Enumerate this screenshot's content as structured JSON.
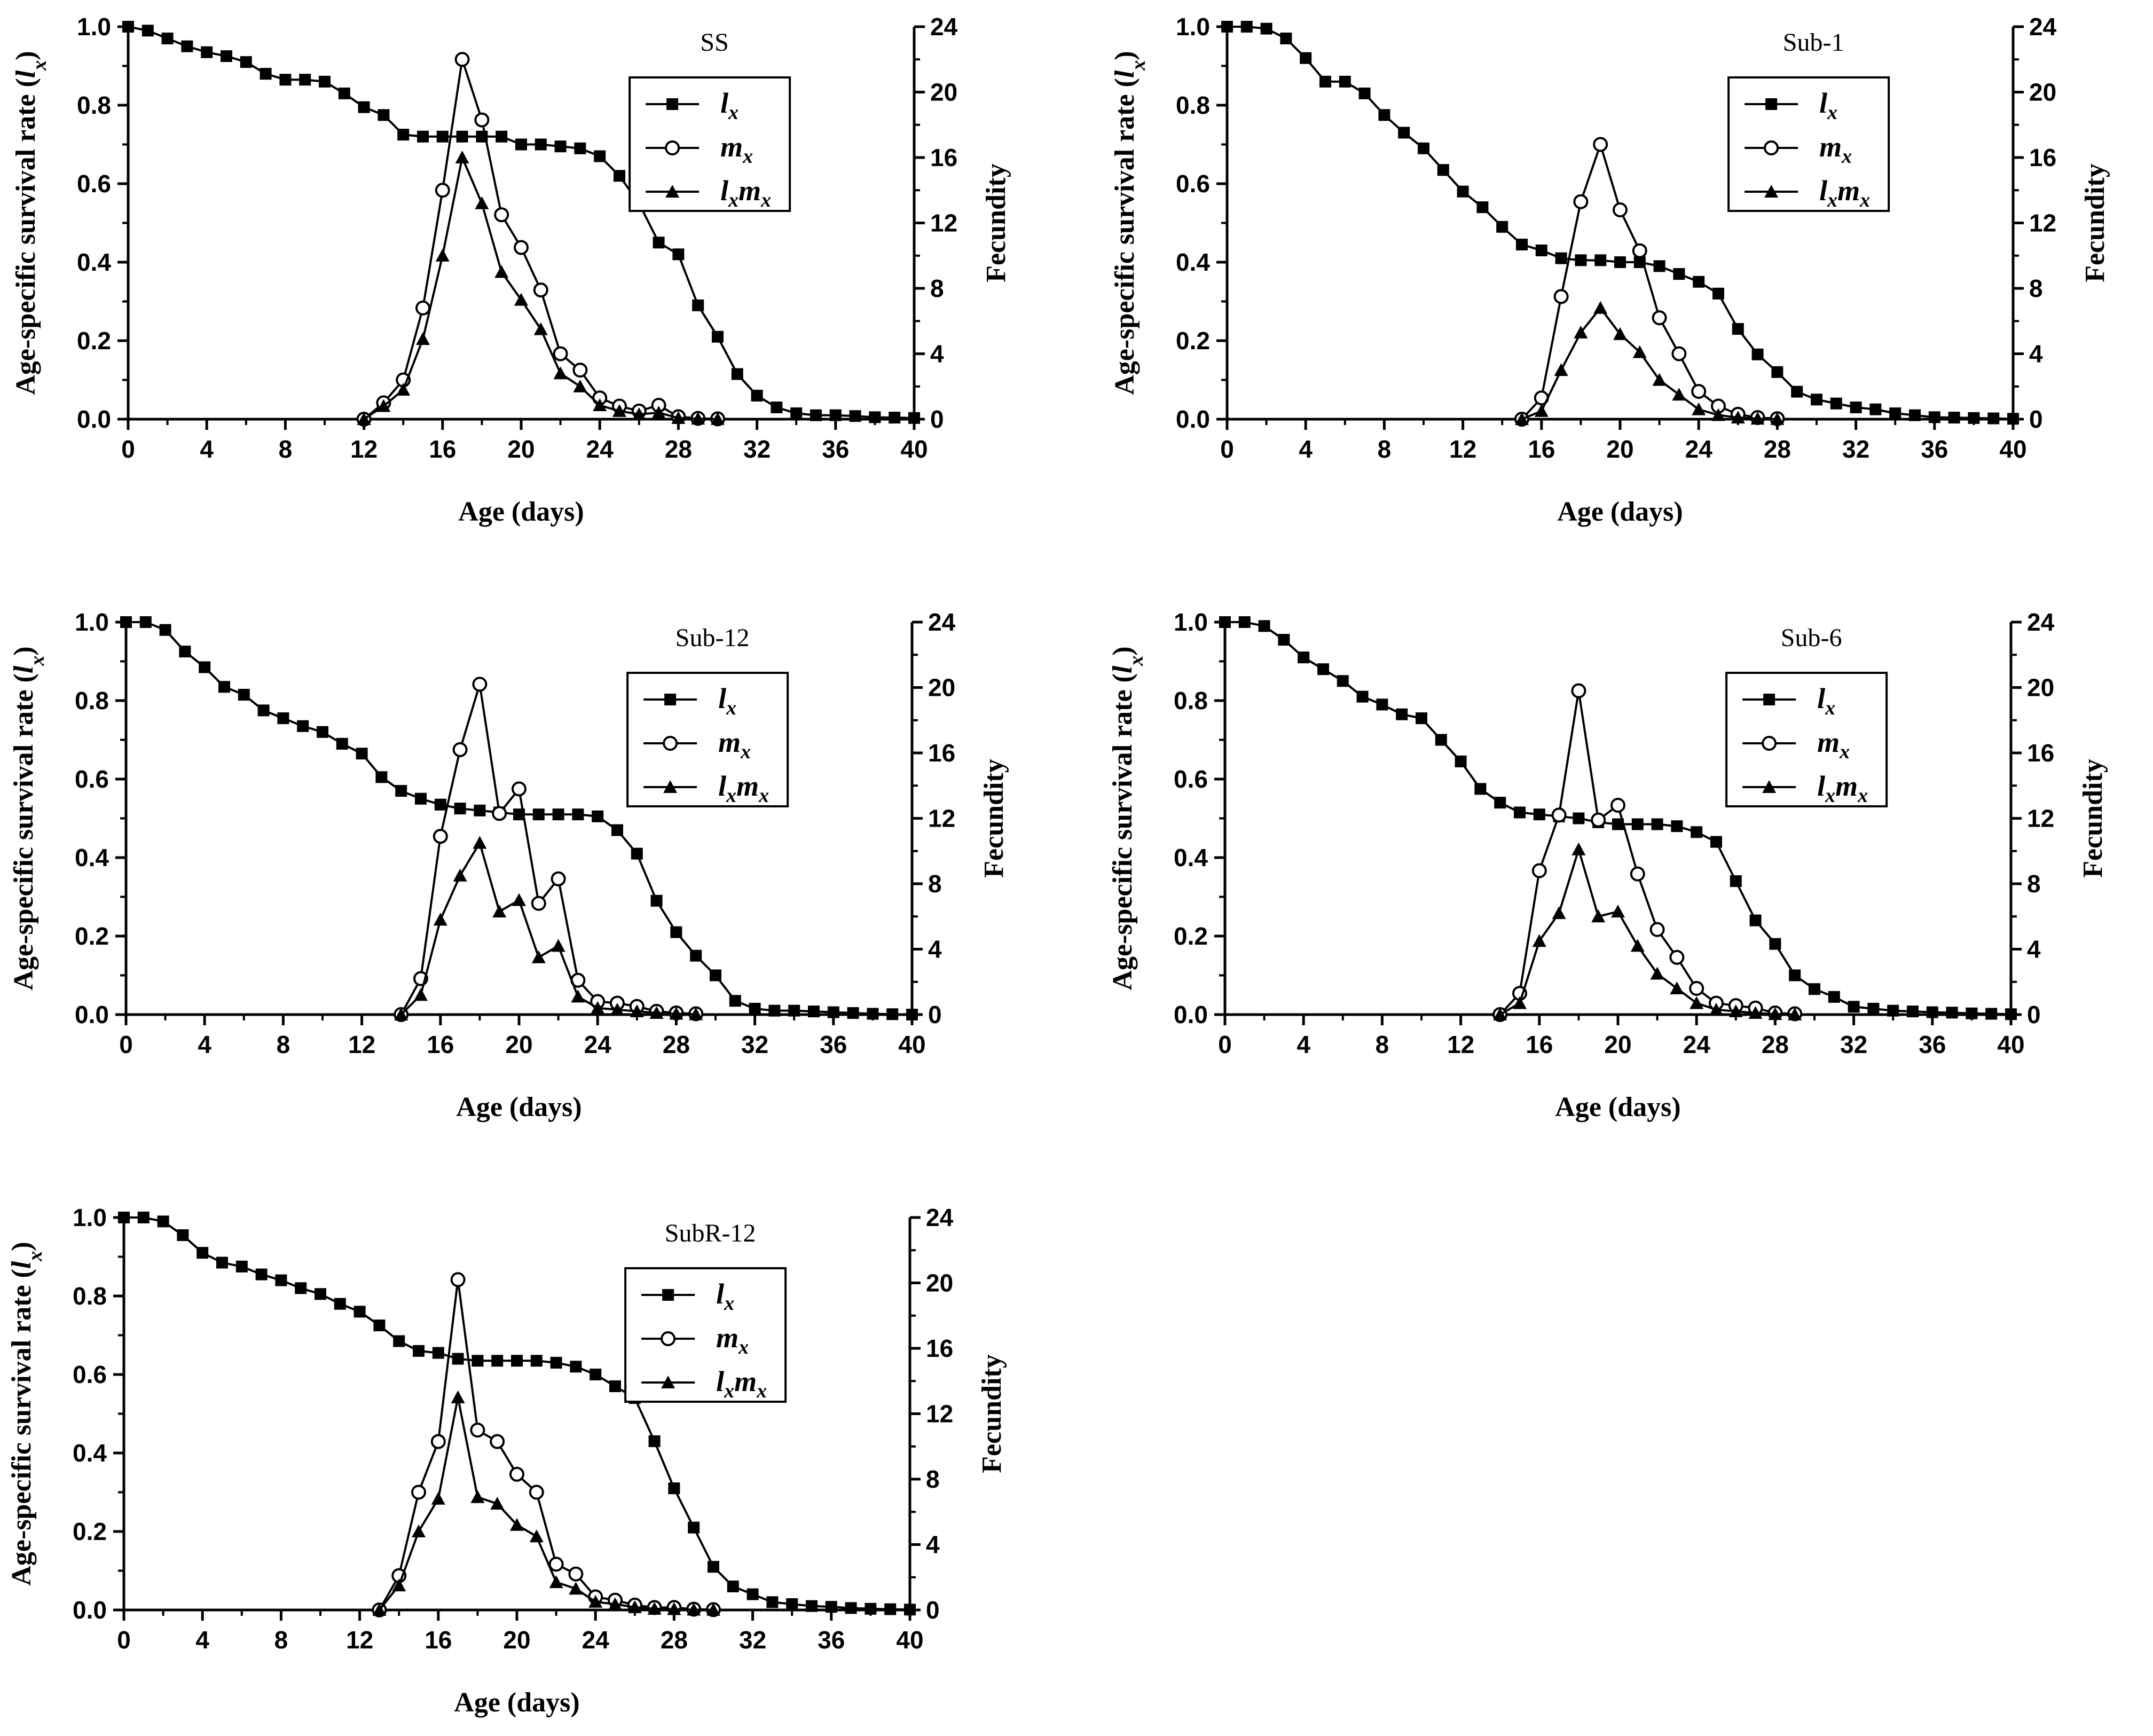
{
  "chart_data": [
    {
      "type": "line",
      "title": "SS",
      "xlabel": "Age (days)",
      "ylabel_left": "Age-specific survival rate (lx)",
      "ylabel_right": "Fecundity",
      "xlim": [
        0,
        40
      ],
      "xticks": [
        0,
        4,
        8,
        12,
        16,
        20,
        24,
        28,
        32,
        36,
        40
      ],
      "ylim_left": [
        0,
        1.0
      ],
      "yticks_left": [
        "0.0",
        "0.2",
        "0.4",
        "0.6",
        "0.8",
        "1.0"
      ],
      "ylim_right": [
        0,
        24
      ],
      "yticks_right": [
        "0",
        "4",
        "8",
        "12",
        "16",
        "20",
        "24"
      ],
      "legend": [
        "lx",
        "mx",
        "lxmx"
      ],
      "series": [
        {
          "name": "lx",
          "axis": "left",
          "marker": "square",
          "x": [
            0,
            1,
            2,
            3,
            4,
            5,
            6,
            7,
            8,
            9,
            10,
            11,
            12,
            13,
            14,
            15,
            16,
            17,
            18,
            19,
            20,
            21,
            22,
            23,
            24,
            25,
            26,
            27,
            28,
            29,
            30,
            31,
            32,
            33,
            34,
            35,
            36,
            37,
            38,
            39,
            40
          ],
          "y": [
            1.0,
            0.99,
            0.97,
            0.95,
            0.935,
            0.925,
            0.91,
            0.88,
            0.865,
            0.865,
            0.86,
            0.83,
            0.795,
            0.775,
            0.725,
            0.72,
            0.72,
            0.72,
            0.72,
            0.72,
            0.7,
            0.7,
            0.695,
            0.69,
            0.67,
            0.62,
            0.55,
            0.45,
            0.42,
            0.29,
            0.21,
            0.115,
            0.06,
            0.03,
            0.015,
            0.01,
            0.01,
            0.008,
            0.005,
            0.004,
            0.003
          ]
        },
        {
          "name": "mx",
          "axis": "right",
          "marker": "circle",
          "x": [
            12,
            13,
            14,
            15,
            16,
            17,
            18,
            19,
            20,
            21,
            22,
            23,
            24,
            25,
            26,
            27,
            28,
            29,
            30
          ],
          "y": [
            0.0,
            1.0,
            2.4,
            6.8,
            14.0,
            22.0,
            18.3,
            12.5,
            10.5,
            7.9,
            4.0,
            3.0,
            1.3,
            0.8,
            0.5,
            0.85,
            0.15,
            0.05,
            0.02
          ]
        },
        {
          "name": "lxmx",
          "axis": "right",
          "marker": "triangle",
          "x": [
            12,
            13,
            14,
            15,
            16,
            17,
            18,
            19,
            20,
            21,
            22,
            23,
            24,
            25,
            26,
            27,
            28,
            29,
            30
          ],
          "y": [
            0.0,
            0.8,
            1.8,
            4.9,
            10.0,
            16.0,
            13.2,
            9.0,
            7.3,
            5.5,
            2.8,
            2.0,
            0.85,
            0.5,
            0.3,
            0.4,
            0.07,
            0.03,
            0.01
          ]
        }
      ]
    },
    {
      "type": "line",
      "title": "Sub-1",
      "xlabel": "Age (days)",
      "ylabel_left": "Age-specific survival rate (lx)",
      "ylabel_right": "Fecundity",
      "xlim": [
        0,
        40
      ],
      "xticks": [
        0,
        4,
        8,
        12,
        16,
        20,
        24,
        28,
        32,
        36,
        40
      ],
      "ylim_left": [
        0,
        1.0
      ],
      "yticks_left": [
        "0.0",
        "0.2",
        "0.4",
        "0.6",
        "0.8",
        "1.0"
      ],
      "ylim_right": [
        0,
        24
      ],
      "yticks_right": [
        "0",
        "4",
        "8",
        "12",
        "16",
        "20",
        "24"
      ],
      "legend": [
        "lx",
        "mx",
        "lxmx"
      ],
      "series": [
        {
          "name": "lx",
          "axis": "left",
          "marker": "square",
          "x": [
            0,
            1,
            2,
            3,
            4,
            5,
            6,
            7,
            8,
            9,
            10,
            11,
            12,
            13,
            14,
            15,
            16,
            17,
            18,
            19,
            20,
            21,
            22,
            23,
            24,
            25,
            26,
            27,
            28,
            29,
            30,
            31,
            32,
            33,
            34,
            35,
            36,
            37,
            38,
            39,
            40
          ],
          "y": [
            1.0,
            1.0,
            0.995,
            0.97,
            0.92,
            0.86,
            0.86,
            0.83,
            0.775,
            0.73,
            0.69,
            0.635,
            0.58,
            0.54,
            0.49,
            0.445,
            0.43,
            0.41,
            0.405,
            0.405,
            0.4,
            0.4,
            0.39,
            0.37,
            0.35,
            0.32,
            0.23,
            0.165,
            0.12,
            0.07,
            0.05,
            0.04,
            0.03,
            0.025,
            0.015,
            0.01,
            0.005,
            0.004,
            0.003,
            0.002,
            0.001
          ]
        },
        {
          "name": "mx",
          "axis": "right",
          "marker": "circle",
          "x": [
            15,
            16,
            17,
            18,
            19,
            20,
            21,
            22,
            23,
            24,
            25,
            26,
            27,
            28
          ],
          "y": [
            0.0,
            1.3,
            7.5,
            13.3,
            16.8,
            12.8,
            10.3,
            6.2,
            4.0,
            1.7,
            0.8,
            0.3,
            0.1,
            0.03
          ]
        },
        {
          "name": "lxmx",
          "axis": "right",
          "marker": "triangle",
          "x": [
            15,
            16,
            17,
            18,
            19,
            20,
            21,
            22,
            23,
            24,
            25,
            26,
            27,
            28
          ],
          "y": [
            0.0,
            0.5,
            3.0,
            5.3,
            6.8,
            5.2,
            4.1,
            2.4,
            1.5,
            0.6,
            0.25,
            0.1,
            0.03,
            0.01
          ]
        }
      ]
    },
    {
      "type": "line",
      "title": "Sub-12",
      "xlabel": "Age (days)",
      "ylabel_left": "Age-specific survival rate (lx)",
      "ylabel_right": "Fecundity",
      "xlim": [
        0,
        40
      ],
      "xticks": [
        0,
        4,
        8,
        12,
        16,
        20,
        24,
        28,
        32,
        36,
        40
      ],
      "ylim_left": [
        0,
        1.0
      ],
      "yticks_left": [
        "0.0",
        "0.2",
        "0.4",
        "0.6",
        "0.8",
        "1.0"
      ],
      "ylim_right": [
        0,
        24
      ],
      "yticks_right": [
        "0",
        "4",
        "8",
        "12",
        "16",
        "20",
        "24"
      ],
      "legend": [
        "lx",
        "mx",
        "lxmx"
      ],
      "series": [
        {
          "name": "lx",
          "axis": "left",
          "marker": "square",
          "x": [
            0,
            1,
            2,
            3,
            4,
            5,
            6,
            7,
            8,
            9,
            10,
            11,
            12,
            13,
            14,
            15,
            16,
            17,
            18,
            19,
            20,
            21,
            22,
            23,
            24,
            25,
            26,
            27,
            28,
            29,
            30,
            31,
            32,
            33,
            34,
            35,
            36,
            37,
            38,
            39,
            40
          ],
          "y": [
            1.0,
            1.0,
            0.98,
            0.925,
            0.885,
            0.835,
            0.815,
            0.775,
            0.755,
            0.735,
            0.72,
            0.69,
            0.665,
            0.605,
            0.57,
            0.55,
            0.535,
            0.525,
            0.52,
            0.515,
            0.51,
            0.51,
            0.51,
            0.51,
            0.505,
            0.47,
            0.41,
            0.29,
            0.21,
            0.15,
            0.1,
            0.035,
            0.015,
            0.01,
            0.01,
            0.008,
            0.006,
            0.004,
            0.002,
            0.001,
            0.0
          ]
        },
        {
          "name": "mx",
          "axis": "right",
          "marker": "circle",
          "x": [
            14,
            15,
            16,
            17,
            18,
            19,
            20,
            21,
            22,
            23,
            24,
            25,
            26,
            27,
            28,
            29
          ],
          "y": [
            0.0,
            2.2,
            10.9,
            16.2,
            20.2,
            12.3,
            13.8,
            6.8,
            8.3,
            2.1,
            0.8,
            0.7,
            0.5,
            0.2,
            0.1,
            0.05
          ]
        },
        {
          "name": "lxmx",
          "axis": "right",
          "marker": "triangle",
          "x": [
            14,
            15,
            16,
            17,
            18,
            19,
            20,
            21,
            22,
            23,
            24,
            25,
            26,
            27,
            28,
            29
          ],
          "y": [
            0.0,
            1.2,
            5.8,
            8.5,
            10.5,
            6.3,
            7.0,
            3.5,
            4.2,
            1.1,
            0.4,
            0.3,
            0.2,
            0.1,
            0.05,
            0.02
          ]
        }
      ]
    },
    {
      "type": "line",
      "title": "Sub-6",
      "xlabel": "Age (days)",
      "ylabel_left": "Age-specific survival rate (lx)",
      "ylabel_right": "Fecundity",
      "xlim": [
        0,
        40
      ],
      "xticks": [
        0,
        4,
        8,
        12,
        16,
        20,
        24,
        28,
        32,
        36,
        40
      ],
      "ylim_left": [
        0,
        1.0
      ],
      "yticks_left": [
        "0.0",
        "0.2",
        "0.4",
        "0.6",
        "0.8",
        "1.0"
      ],
      "ylim_right": [
        0,
        24
      ],
      "yticks_right": [
        "0",
        "4",
        "8",
        "12",
        "16",
        "20",
        "24"
      ],
      "legend": [
        "lx",
        "mx",
        "lxmx"
      ],
      "series": [
        {
          "name": "lx",
          "axis": "left",
          "marker": "square",
          "x": [
            0,
            1,
            2,
            3,
            4,
            5,
            6,
            7,
            8,
            9,
            10,
            11,
            12,
            13,
            14,
            15,
            16,
            17,
            18,
            19,
            20,
            21,
            22,
            23,
            24,
            25,
            26,
            27,
            28,
            29,
            30,
            31,
            32,
            33,
            34,
            35,
            36,
            37,
            38,
            39,
            40
          ],
          "y": [
            1.0,
            1.0,
            0.99,
            0.955,
            0.91,
            0.88,
            0.85,
            0.81,
            0.79,
            0.765,
            0.755,
            0.7,
            0.645,
            0.575,
            0.54,
            0.515,
            0.51,
            0.505,
            0.5,
            0.49,
            0.485,
            0.485,
            0.485,
            0.48,
            0.465,
            0.44,
            0.34,
            0.24,
            0.18,
            0.1,
            0.065,
            0.045,
            0.02,
            0.015,
            0.01,
            0.008,
            0.006,
            0.005,
            0.003,
            0.002,
            0.001
          ]
        },
        {
          "name": "mx",
          "axis": "right",
          "marker": "circle",
          "x": [
            14,
            15,
            16,
            17,
            18,
            19,
            20,
            21,
            22,
            23,
            24,
            25,
            26,
            27,
            28,
            29
          ],
          "y": [
            0.0,
            1.3,
            8.8,
            12.2,
            19.8,
            11.9,
            12.8,
            8.6,
            5.2,
            3.5,
            1.6,
            0.7,
            0.55,
            0.4,
            0.1,
            0.05
          ]
        },
        {
          "name": "lxmx",
          "axis": "right",
          "marker": "triangle",
          "x": [
            14,
            15,
            16,
            17,
            18,
            19,
            20,
            21,
            22,
            23,
            24,
            25,
            26,
            27,
            28,
            29
          ],
          "y": [
            0.0,
            0.7,
            4.5,
            6.2,
            10.1,
            6.0,
            6.3,
            4.2,
            2.5,
            1.6,
            0.7,
            0.3,
            0.2,
            0.1,
            0.03,
            0.01
          ]
        }
      ]
    },
    {
      "type": "line",
      "title": "SubR-12",
      "xlabel": "Age (days)",
      "ylabel_left": "Age-specific survival rate (lx)",
      "ylabel_right": "Fecundity",
      "xlim": [
        0,
        40
      ],
      "xticks": [
        0,
        4,
        8,
        12,
        16,
        20,
        24,
        28,
        32,
        36,
        40
      ],
      "ylim_left": [
        0,
        1.0
      ],
      "yticks_left": [
        "0.0",
        "0.2",
        "0.4",
        "0.6",
        "0.8",
        "1.0"
      ],
      "ylim_right": [
        0,
        24
      ],
      "yticks_right": [
        "0",
        "4",
        "8",
        "12",
        "16",
        "20",
        "24"
      ],
      "legend": [
        "lx",
        "mx",
        "lxmx"
      ],
      "series": [
        {
          "name": "lx",
          "axis": "left",
          "marker": "square",
          "x": [
            0,
            1,
            2,
            3,
            4,
            5,
            6,
            7,
            8,
            9,
            10,
            11,
            12,
            13,
            14,
            15,
            16,
            17,
            18,
            19,
            20,
            21,
            22,
            23,
            24,
            25,
            26,
            27,
            28,
            29,
            30,
            31,
            32,
            33,
            34,
            35,
            36,
            37,
            38,
            39,
            40
          ],
          "y": [
            1.0,
            1.0,
            0.99,
            0.955,
            0.91,
            0.885,
            0.875,
            0.855,
            0.84,
            0.82,
            0.805,
            0.78,
            0.76,
            0.725,
            0.685,
            0.66,
            0.655,
            0.64,
            0.635,
            0.635,
            0.635,
            0.635,
            0.63,
            0.62,
            0.6,
            0.57,
            0.54,
            0.43,
            0.31,
            0.21,
            0.11,
            0.06,
            0.04,
            0.02,
            0.015,
            0.01,
            0.008,
            0.005,
            0.003,
            0.002,
            0.001
          ]
        },
        {
          "name": "mx",
          "axis": "right",
          "marker": "circle",
          "x": [
            13,
            14,
            15,
            16,
            17,
            18,
            19,
            20,
            21,
            22,
            23,
            24,
            25,
            26,
            27,
            28,
            29,
            30
          ],
          "y": [
            0.0,
            2.1,
            7.2,
            10.3,
            20.2,
            11.0,
            10.3,
            8.3,
            7.2,
            2.8,
            2.2,
            0.8,
            0.6,
            0.3,
            0.15,
            0.15,
            0.05,
            0.02
          ]
        },
        {
          "name": "lxmx",
          "axis": "right",
          "marker": "triangle",
          "x": [
            13,
            14,
            15,
            16,
            17,
            18,
            19,
            20,
            21,
            22,
            23,
            24,
            25,
            26,
            27,
            28,
            29,
            30
          ],
          "y": [
            0.0,
            1.5,
            4.8,
            6.8,
            13.0,
            6.9,
            6.5,
            5.2,
            4.5,
            1.7,
            1.3,
            0.5,
            0.35,
            0.17,
            0.07,
            0.05,
            0.02,
            0.01
          ]
        }
      ]
    }
  ]
}
